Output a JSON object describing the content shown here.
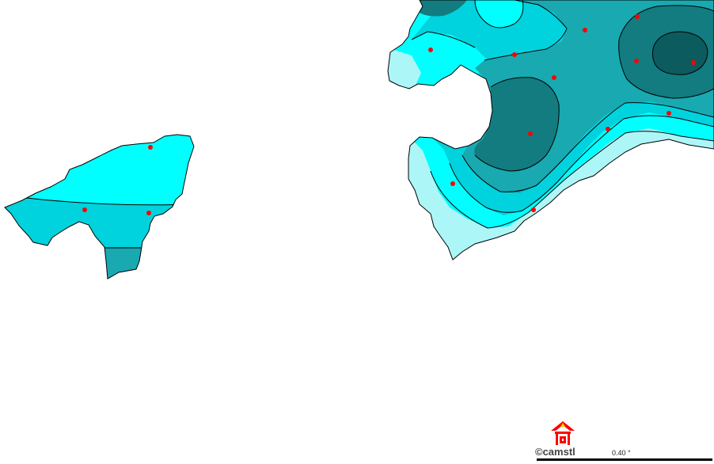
{
  "map": {
    "colors": {
      "level1": "#ADF6F8",
      "level2": "#00FFFF",
      "level3": "#00D3DD",
      "level4": "#18A9B1",
      "level5": "#127C80",
      "level6": "#0C5B5E",
      "station": "#FF0000",
      "contour": "#000000"
    },
    "copyright": "©camstl",
    "scale_label": "0.40 °",
    "logo_icon": "red-gate-logo-icon"
  }
}
